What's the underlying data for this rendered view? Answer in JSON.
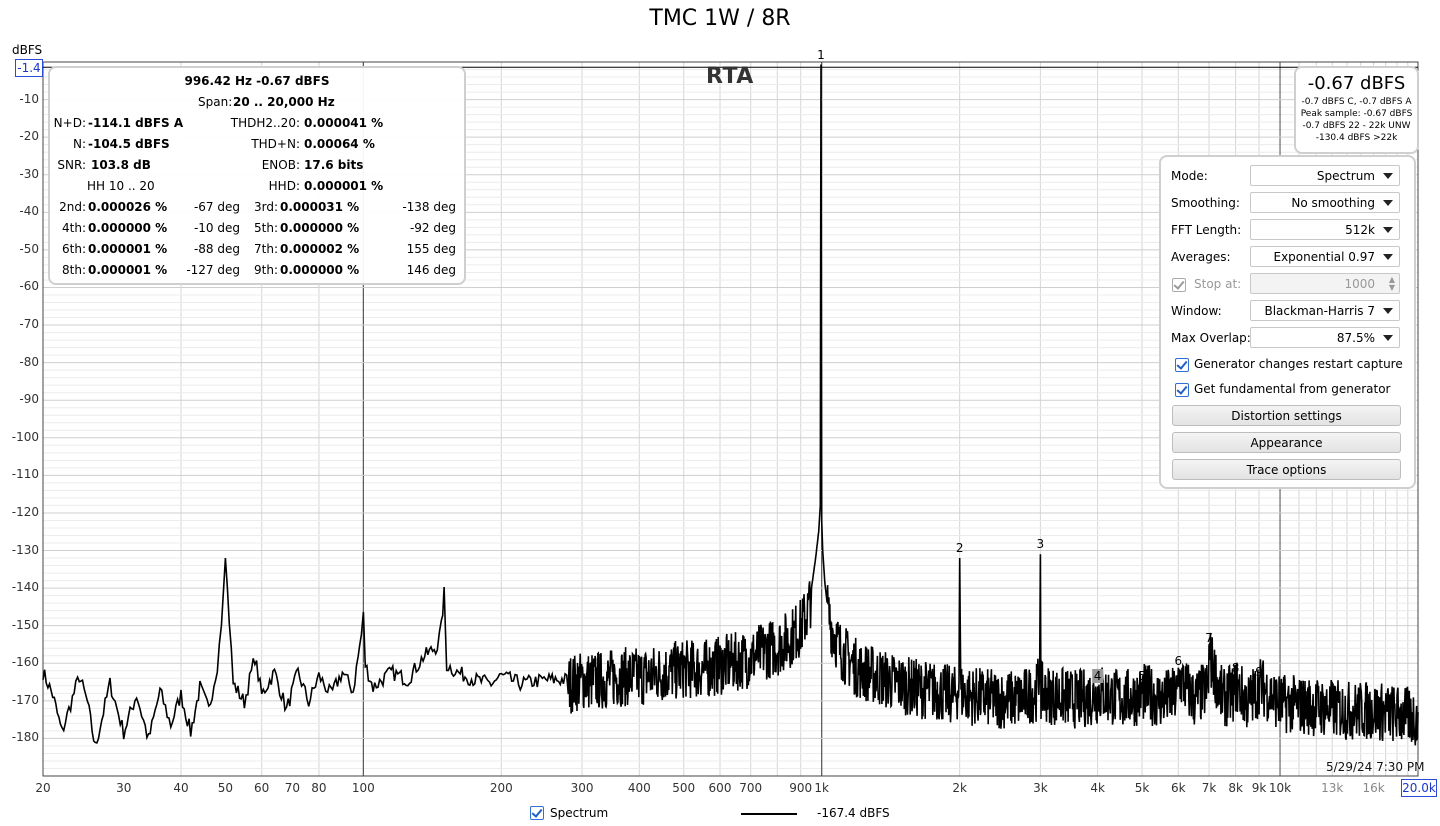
{
  "title": "TMC 1W / 8R",
  "y_unit": "dBFS",
  "rta_label": "RTA",
  "reference_value": "-1.4",
  "x_max_value": "20.0k",
  "timestamp": "5/29/24 7:30 PM",
  "stats": {
    "fundamental": "996.42 Hz  -0.67 dBFS",
    "span_label": "Span:",
    "span_value": "20 .. 20,000 Hz",
    "nd_label": "N+D:",
    "nd_value": "-114.1 dBFS A",
    "thd_label": "THDH2..20:",
    "thd_value": "0.000041 %",
    "n_label": "N:",
    "n_value": "-104.5 dBFS",
    "thdn_label": "THD+N:",
    "thdn_value": "0.00064 %",
    "snr_label": "SNR:",
    "snr_value": "103.8 dB",
    "enob_label": "ENOB:",
    "enob_value": "17.6 bits",
    "hh_label": "HH 10 .. 20",
    "hhd_label": "HHD:",
    "hhd_value": "0.000001 %",
    "harmonics": [
      {
        "label": "2nd:",
        "value": "0.000026 %",
        "phase": "-67 deg"
      },
      {
        "label": "3rd:",
        "value": "0.000031 %",
        "phase": "-138 deg"
      },
      {
        "label": "4th:",
        "value": "0.000000 %",
        "phase": "-10 deg"
      },
      {
        "label": "5th:",
        "value": "0.000000 %",
        "phase": "-92 deg"
      },
      {
        "label": "6th:",
        "value": "0.000001 %",
        "phase": "-88 deg"
      },
      {
        "label": "7th:",
        "value": "0.000002 %",
        "phase": "155 deg"
      },
      {
        "label": "8th:",
        "value": "0.000001 %",
        "phase": "-127 deg"
      },
      {
        "label": "9th:",
        "value": "0.000000 %",
        "phase": "146 deg"
      }
    ]
  },
  "level": {
    "main": "-0.67 dBFS",
    "line1": "-0.7 dBFS C, -0.7 dBFS A",
    "line2": "Peak sample: -0.67 dBFS",
    "line3": "-0.7 dBFS 22 - 22k UNW",
    "line4": "-130.4 dBFS >22k"
  },
  "settings": {
    "mode_label": "Mode:",
    "mode_value": "Spectrum",
    "smoothing_label": "Smoothing:",
    "smoothing_value": "No smoothing",
    "fft_label": "FFT Length:",
    "fft_value": "512k",
    "averages_label": "Averages:",
    "averages_value": "Exponential 0.97",
    "stop_label": "Stop at:",
    "stop_value": "1000",
    "window_label": "Window:",
    "window_value": "Blackman-Harris 7",
    "overlap_label": "Max Overlap:",
    "overlap_value": "87.5%",
    "gen_restart_label": "Generator changes restart capture",
    "gen_fundamental_label": "Get fundamental from generator",
    "distortion_button": "Distortion settings",
    "appearance_button": "Appearance",
    "trace_button": "Trace options"
  },
  "legend": {
    "name": "Spectrum",
    "value": "-167.4 dBFS",
    "line_color": "#000000"
  },
  "colors": {
    "reference_line": "#000000",
    "accent_blue": "#2a4bd7",
    "trace": "#000000"
  },
  "chart_data": {
    "type": "line",
    "title": "TMC 1W / 8R",
    "xlabel": "",
    "ylabel": "dBFS",
    "x_scale": "log",
    "xlim": [
      20,
      20000
    ],
    "ylim": [
      -190,
      0
    ],
    "grid": true,
    "legend_placement": "bottom-center",
    "x_tick_labels": [
      "20",
      "30",
      "40",
      "50",
      "60",
      "70",
      "80",
      "100",
      "200",
      "300",
      "400",
      "500",
      "600",
      "700",
      "900",
      "1k",
      "2k",
      "3k",
      "4k",
      "5k",
      "6k",
      "7k",
      "8k",
      "9k",
      "10k",
      "13k",
      "16k",
      "20.0k"
    ],
    "x_tick_values": [
      20,
      30,
      40,
      50,
      60,
      70,
      80,
      100,
      200,
      300,
      400,
      500,
      600,
      700,
      900,
      1000,
      2000,
      3000,
      4000,
      5000,
      6000,
      7000,
      8000,
      9000,
      10000,
      13000,
      16000,
      20000
    ],
    "y_tick_labels": [
      "-10",
      "-20",
      "-30",
      "-40",
      "-50",
      "-60",
      "-70",
      "-80",
      "-90",
      "-100",
      "-110",
      "-120",
      "-130",
      "-140",
      "-150",
      "-160",
      "-170",
      "-180"
    ],
    "y_tick_values": [
      -10,
      -20,
      -30,
      -40,
      -50,
      -60,
      -70,
      -80,
      -90,
      -100,
      -110,
      -120,
      -130,
      -140,
      -150,
      -160,
      -170,
      -180
    ],
    "reference_level": -1.4,
    "series": [
      {
        "name": "Spectrum",
        "x": [
          20,
          21,
          22,
          24,
          25,
          26,
          28,
          30,
          32,
          34,
          36,
          38,
          40,
          42,
          44,
          46,
          48,
          49,
          50,
          51,
          52,
          55,
          58,
          60,
          64,
          68,
          72,
          76,
          80,
          85,
          90,
          95,
          99,
          100,
          101,
          105,
          115,
          125,
          135,
          145,
          148,
          150,
          152,
          160,
          175,
          190,
          200,
          220,
          250,
          280,
          300,
          330,
          360,
          400,
          450,
          500,
          550,
          600,
          650,
          700,
          750,
          800,
          850,
          880,
          900,
          930,
          950,
          970,
          985,
          993,
          996.42,
          1000,
          1005,
          1015,
          1030,
          1060,
          1100,
          1200,
          1400,
          1600,
          1800,
          1950,
          1993,
          2000,
          2010,
          2100,
          2400,
          2700,
          2950,
          2990,
          3000,
          3010,
          3200,
          3600,
          3990,
          4000,
          4500,
          4980,
          5000,
          5500,
          5980,
          6000,
          6500,
          6970,
          6980,
          7000,
          7500,
          7970,
          8000,
          8500,
          8970,
          9000,
          10000,
          12000,
          14000,
          16000,
          18000,
          20000
        ],
        "y": [
          -162,
          -168,
          -178,
          -163,
          -170,
          -182,
          -165,
          -178,
          -168,
          -180,
          -167,
          -176,
          -168,
          -178,
          -166,
          -172,
          -160,
          -150,
          -132,
          -148,
          -165,
          -170,
          -158,
          -168,
          -162,
          -172,
          -162,
          -170,
          -163,
          -168,
          -162,
          -167,
          -152,
          -147,
          -160,
          -166,
          -162,
          -164,
          -158,
          -155,
          -150,
          -141,
          -160,
          -162,
          -164,
          -165,
          -163,
          -165,
          -164,
          -164,
          -163,
          -163,
          -162,
          -162,
          -161,
          -160,
          -160,
          -159,
          -158,
          -157,
          -155,
          -154,
          -152,
          -150,
          -149,
          -145,
          -140,
          -132,
          -125,
          -118,
          -0.67,
          -122,
          -130,
          -138,
          -145,
          -150,
          -155,
          -160,
          -163,
          -165,
          -166,
          -167,
          -165,
          -132,
          -166,
          -167,
          -168,
          -168,
          -166,
          -160,
          -131,
          -166,
          -167,
          -168,
          -167,
          -166,
          -168,
          -167,
          -166,
          -168,
          -167,
          -162,
          -168,
          -165,
          -163,
          -156,
          -168,
          -166,
          -164,
          -169,
          -165,
          -164,
          -169,
          -170,
          -171,
          -171,
          -172,
          -173
        ]
      }
    ],
    "peak_labels": [
      {
        "label": "1",
        "x": 996.42,
        "y": -0.67
      },
      {
        "label": "2",
        "x": 2000,
        "y": -132
      },
      {
        "label": "3",
        "x": 3000,
        "y": -131
      },
      {
        "label": "4",
        "x": 4000,
        "y": -166
      },
      {
        "label": "5",
        "x": 5000,
        "y": -166
      },
      {
        "label": "6",
        "x": 6000,
        "y": -162
      },
      {
        "label": "7",
        "x": 7000,
        "y": -156
      },
      {
        "label": "8",
        "x": 8000,
        "y": -164
      },
      {
        "label": "9",
        "x": 9000,
        "y": -165
      }
    ]
  }
}
